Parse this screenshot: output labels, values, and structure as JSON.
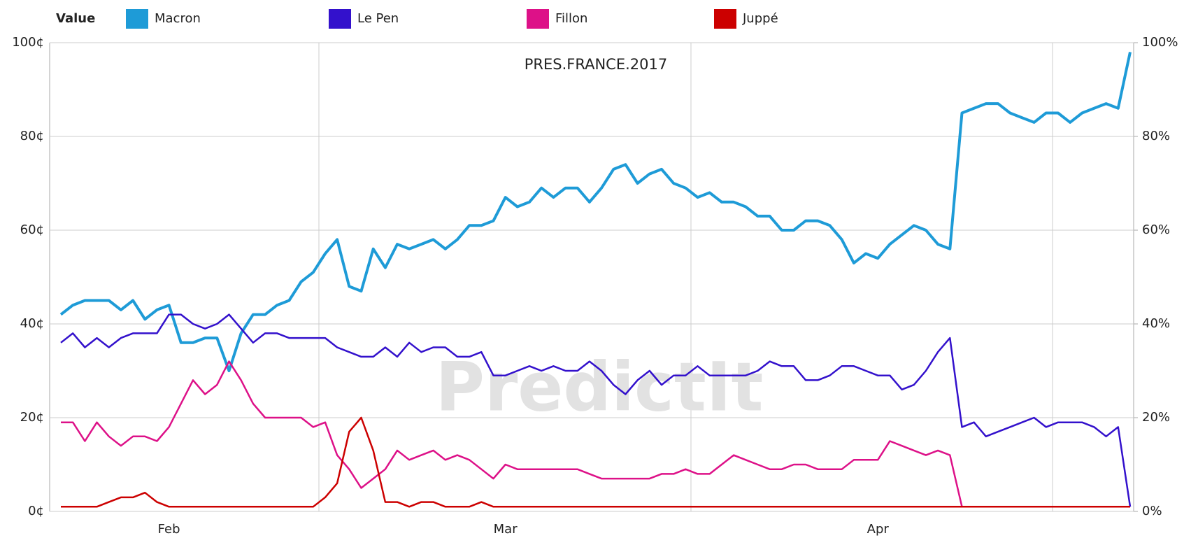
{
  "chart_data": {
    "type": "line",
    "title": "PRES.FRANCE.2017",
    "watermark": "PredictIt",
    "legend_title": "Value",
    "legend": "top",
    "grid": true,
    "categories": [
      null,
      null,
      null,
      null,
      null,
      null,
      null,
      null,
      null,
      "Feb",
      null,
      null,
      null,
      null,
      null,
      null,
      null,
      null,
      null,
      null,
      null,
      null,
      null,
      null,
      null,
      null,
      null,
      null,
      null,
      null,
      null,
      null,
      null,
      null,
      null,
      null,
      null,
      "Mar",
      null,
      null,
      null,
      null,
      null,
      null,
      null,
      null,
      null,
      null,
      null,
      null,
      null,
      null,
      null,
      null,
      null,
      null,
      null,
      null,
      null,
      null,
      null,
      null,
      null,
      null,
      null,
      null,
      null,
      null,
      "Apr",
      null,
      null,
      null,
      null,
      null,
      null,
      null,
      null,
      null,
      null,
      null,
      null,
      null,
      null,
      null,
      null,
      null,
      null,
      null,
      null,
      null
    ],
    "ylim": [
      0,
      100
    ],
    "yticks": [
      {
        "value": 0,
        "label": "0¢"
      },
      {
        "value": 20,
        "label": "20¢"
      },
      {
        "value": 40,
        "label": "40¢"
      },
      {
        "value": 60,
        "label": "60¢"
      },
      {
        "value": 80,
        "label": "80¢"
      },
      {
        "value": 100,
        "label": "100¢"
      }
    ],
    "y2lim": [
      0,
      100
    ],
    "y2ticks": [
      {
        "value": 0,
        "label": "0%"
      },
      {
        "value": 20,
        "label": "20%"
      },
      {
        "value": 40,
        "label": "40%"
      },
      {
        "value": 60,
        "label": "60%"
      },
      {
        "value": 80,
        "label": "80%"
      },
      {
        "value": 100,
        "label": "100%"
      }
    ],
    "series": [
      {
        "name": "Macron",
        "color": "#1e9bd7",
        "values": [
          42,
          44,
          45,
          45,
          45,
          43,
          45,
          41,
          43,
          44,
          36,
          36,
          37,
          37,
          30,
          38,
          42,
          42,
          44,
          45,
          49,
          51,
          55,
          58,
          48,
          47,
          56,
          52,
          57,
          56,
          57,
          58,
          56,
          58,
          61,
          61,
          62,
          67,
          65,
          66,
          69,
          67,
          69,
          69,
          66,
          69,
          73,
          74,
          70,
          72,
          73,
          70,
          69,
          67,
          68,
          66,
          66,
          65,
          63,
          63,
          60,
          60,
          62,
          62,
          61,
          58,
          53,
          55,
          54,
          57,
          59,
          61,
          60,
          57,
          56,
          85,
          86,
          87,
          87,
          85,
          84,
          83,
          85,
          85,
          83,
          85,
          86,
          87,
          86,
          98
        ]
      },
      {
        "name": "Le Pen",
        "color": "#3311cc",
        "values": [
          36,
          38,
          35,
          37,
          35,
          37,
          38,
          38,
          38,
          42,
          42,
          40,
          39,
          40,
          42,
          39,
          36,
          38,
          38,
          37,
          37,
          37,
          37,
          35,
          34,
          33,
          33,
          35,
          33,
          36,
          34,
          35,
          35,
          33,
          33,
          34,
          29,
          29,
          30,
          31,
          30,
          31,
          30,
          30,
          32,
          30,
          27,
          25,
          28,
          30,
          27,
          29,
          29,
          31,
          29,
          29,
          29,
          29,
          30,
          32,
          31,
          31,
          28,
          28,
          29,
          31,
          31,
          30,
          29,
          29,
          26,
          27,
          30,
          34,
          37,
          18,
          19,
          16,
          17,
          18,
          19,
          20,
          18,
          19,
          19,
          19,
          18,
          16,
          18,
          1
        ]
      },
      {
        "name": "Fillon",
        "color": "#dd1188",
        "values": [
          19,
          19,
          15,
          19,
          16,
          14,
          16,
          16,
          15,
          18,
          23,
          28,
          25,
          27,
          32,
          28,
          23,
          20,
          20,
          20,
          20,
          18,
          19,
          12,
          9,
          5,
          7,
          9,
          13,
          11,
          12,
          13,
          11,
          12,
          11,
          9,
          7,
          10,
          9,
          9,
          9,
          9,
          9,
          9,
          8,
          7,
          7,
          7,
          7,
          7,
          8,
          8,
          9,
          8,
          8,
          10,
          12,
          11,
          10,
          9,
          9,
          10,
          10,
          9,
          9,
          9,
          11,
          11,
          11,
          15,
          14,
          13,
          12,
          13,
          12,
          1,
          1,
          1,
          1,
          1,
          1,
          1,
          1,
          1,
          1,
          1,
          1,
          1,
          1,
          1
        ]
      },
      {
        "name": "Juppé",
        "color": "#cc0000",
        "values": [
          1,
          1,
          1,
          1,
          2,
          3,
          3,
          4,
          2,
          1,
          1,
          1,
          1,
          1,
          1,
          1,
          1,
          1,
          1,
          1,
          1,
          1,
          3,
          6,
          17,
          20,
          13,
          2,
          2,
          1,
          2,
          2,
          1,
          1,
          1,
          2,
          1,
          1,
          1,
          1,
          1,
          1,
          1,
          1,
          1,
          1,
          1,
          1,
          1,
          1,
          1,
          1,
          1,
          1,
          1,
          1,
          1,
          1,
          1,
          1,
          1,
          1,
          1,
          1,
          1,
          1,
          1,
          1,
          1,
          1,
          1,
          1,
          1,
          1,
          1,
          1,
          1,
          1,
          1,
          1,
          1,
          1,
          1,
          1,
          1,
          1,
          1,
          1,
          1,
          1
        ]
      }
    ]
  }
}
